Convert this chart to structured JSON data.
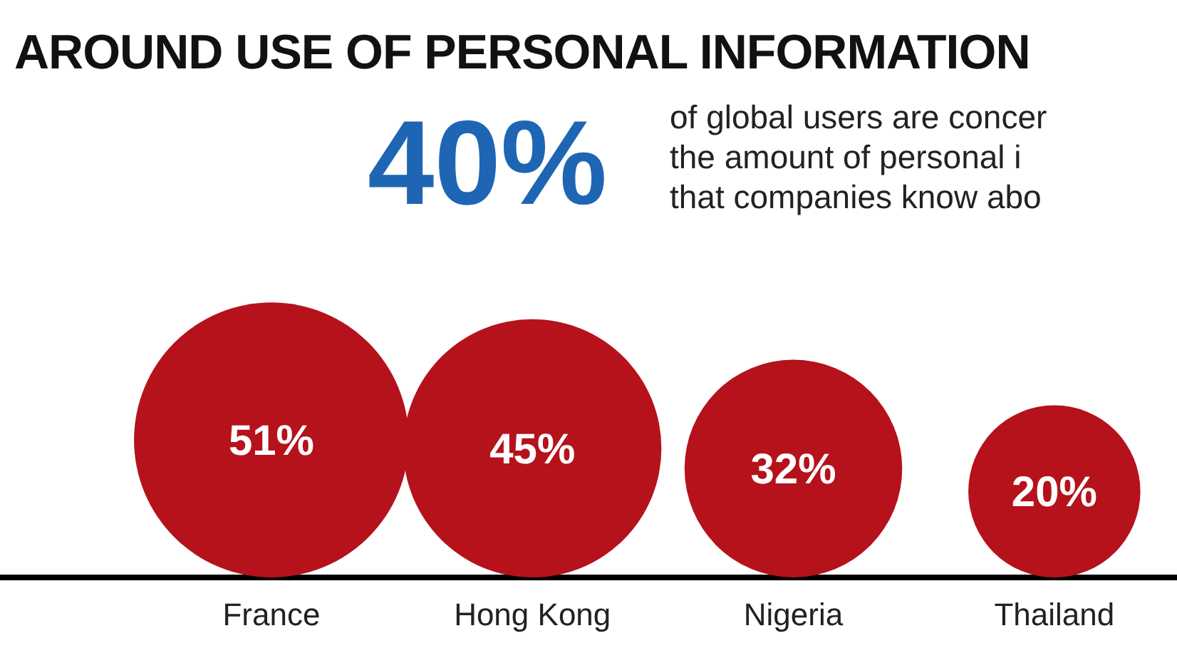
{
  "chart_data": {
    "type": "other",
    "title": "AROUND USE OF PERSONAL INFORMATION",
    "annotations": [
      "40%",
      "of global users are concer",
      "the amount of personal i",
      "that companies know abo"
    ],
    "categories": [
      "France",
      "Hong Kong",
      "Nigeria",
      "Thailand"
    ],
    "values": [
      51,
      45,
      32,
      20
    ],
    "color": "#b5121b",
    "value_labels": [
      "51%",
      "45%",
      "32%",
      "20%"
    ]
  }
}
